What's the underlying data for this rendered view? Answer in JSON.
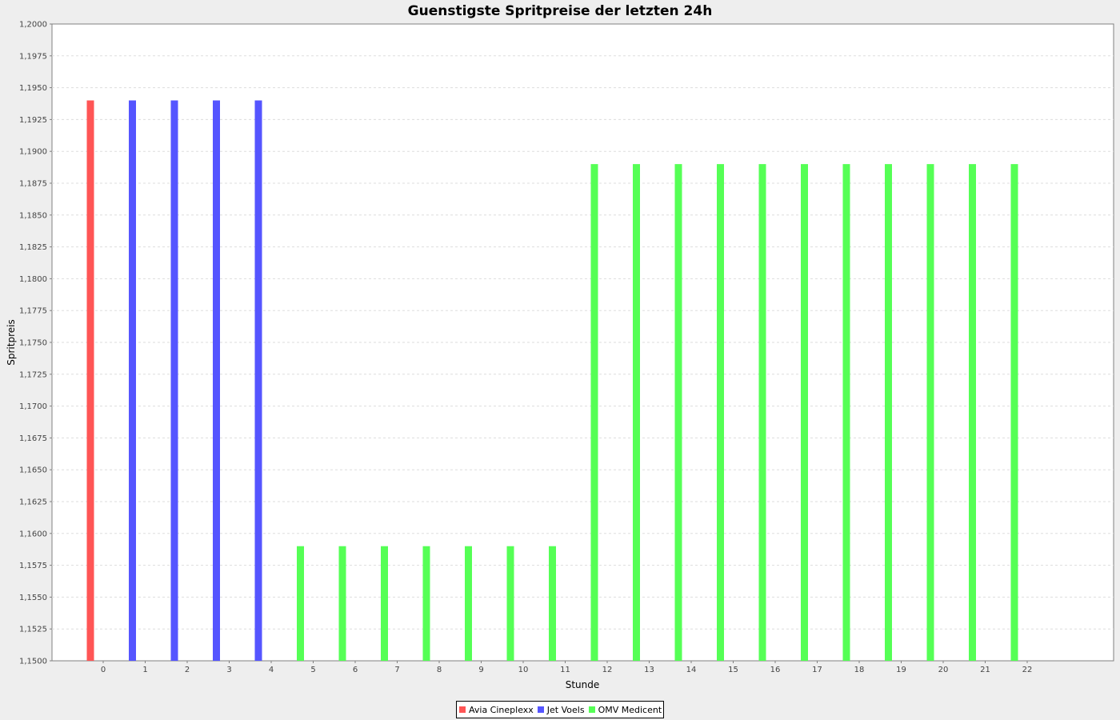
{
  "chart_data": {
    "type": "bar",
    "title": "Guenstigste Spritpreise der letzten 24h",
    "xlabel": "Stunde",
    "ylabel": "Spritpreis",
    "ylim": [
      1.15,
      1.2
    ],
    "yticks": [
      "1,1500",
      "1,1525",
      "1,1550",
      "1,1575",
      "1,1600",
      "1,1625",
      "1,1650",
      "1,1675",
      "1,1700",
      "1,1725",
      "1,1750",
      "1,1775",
      "1,1800",
      "1,1825",
      "1,1850",
      "1,1875",
      "1,1900",
      "1,1925",
      "1,1950",
      "1,1975",
      "1,2000"
    ],
    "categories": [
      "0",
      "1",
      "2",
      "3",
      "4",
      "5",
      "6",
      "7",
      "8",
      "9",
      "10",
      "11",
      "12",
      "13",
      "14",
      "15",
      "16",
      "17",
      "18",
      "19",
      "20",
      "21",
      "22"
    ],
    "grid": true,
    "legend_position": "bottom",
    "series": [
      {
        "name": "Avia Cineplexx",
        "color": "#ff5555",
        "values": [
          1.194,
          null,
          null,
          null,
          null,
          null,
          null,
          null,
          null,
          null,
          null,
          null,
          null,
          null,
          null,
          null,
          null,
          null,
          null,
          null,
          null,
          null,
          null
        ]
      },
      {
        "name": "Jet Voels",
        "color": "#5555ff",
        "values": [
          null,
          1.194,
          1.194,
          1.194,
          1.194,
          null,
          null,
          null,
          null,
          null,
          null,
          null,
          null,
          null,
          null,
          null,
          null,
          null,
          null,
          null,
          null,
          null,
          null
        ]
      },
      {
        "name": "OMV Medicent",
        "color": "#55ff55",
        "values": [
          null,
          null,
          null,
          null,
          null,
          1.159,
          1.159,
          1.159,
          1.159,
          1.159,
          1.159,
          1.159,
          1.189,
          1.189,
          1.189,
          1.189,
          1.189,
          1.189,
          1.189,
          1.189,
          1.189,
          1.189,
          1.189
        ]
      }
    ]
  }
}
